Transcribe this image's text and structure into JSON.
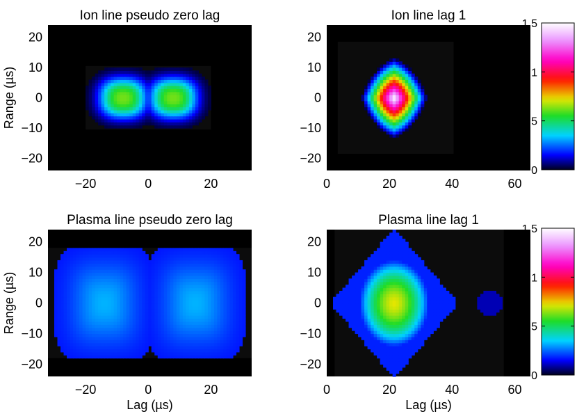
{
  "chart_data": [
    {
      "type": "heatmap",
      "title": "Ion line pseudo zero lag",
      "xlabel": "",
      "ylabel": "Range (µs)",
      "xlim": [
        -32,
        33
      ],
      "ylim": [
        -24,
        24
      ],
      "x_ticks": [
        "−20",
        "0",
        "20"
      ],
      "y_ticks": [
        "20",
        "10",
        "0",
        "−10",
        "−20"
      ],
      "support": {
        "x": [
          -20,
          20
        ],
        "y": [
          -10.5,
          10.5
        ]
      },
      "blobs": [
        {
          "x": -8,
          "y": 0,
          "peak": 0.62
        },
        {
          "x": 8,
          "y": 0,
          "peak": 0.62
        }
      ]
    },
    {
      "type": "heatmap",
      "title": "Ion line lag 1",
      "xlabel": "",
      "ylabel": "",
      "xlim": [
        0,
        65
      ],
      "ylim": [
        -24,
        24
      ],
      "x_ticks": [
        "0",
        "20",
        "40",
        "60"
      ],
      "y_ticks": [
        "20",
        "10",
        "0",
        "−10",
        "−20"
      ],
      "support": {
        "x": [
          3.5,
          40.5
        ],
        "y": [
          -18.5,
          18.5
        ]
      },
      "blobs": [
        {
          "x": 21.5,
          "y": 0,
          "peak": 1.5
        }
      ]
    },
    {
      "type": "heatmap",
      "title": "Plasma line pseudo zero lag",
      "xlabel": "Lag (µs)",
      "ylabel": "Range (µs)",
      "xlim": [
        -32,
        33
      ],
      "ylim": [
        -24,
        24
      ],
      "x_ticks": [
        "−20",
        "0",
        "20"
      ],
      "y_ticks": [
        "20",
        "10",
        "0",
        "−10",
        "−20"
      ],
      "support": {
        "x": [
          -32,
          33
        ],
        "y": [
          -18,
          18
        ]
      },
      "blobs": [
        {
          "x": -14,
          "y": 0,
          "peak": 0.32
        },
        {
          "x": 15,
          "y": 0,
          "peak": 0.32
        }
      ]
    },
    {
      "type": "heatmap",
      "title": "Plasma line lag 1",
      "xlabel": "Lag (µs)",
      "ylabel": "",
      "xlim": [
        0,
        65
      ],
      "ylim": [
        -24,
        24
      ],
      "x_ticks": [
        "0",
        "20",
        "40",
        "60"
      ],
      "y_ticks": [
        "20",
        "10",
        "0",
        "−10",
        "−20"
      ],
      "support": {
        "x": [
          2.5,
          56.5
        ],
        "y": [
          -24,
          24
        ]
      },
      "blobs": [
        {
          "x": 21.5,
          "y": 0,
          "peak": 0.72
        },
        {
          "x": 52,
          "y": 0,
          "peak": 0.1
        }
      ]
    }
  ],
  "colorbars": [
    {
      "ticks": [
        "1.5",
        "1",
        "0.5",
        "0"
      ],
      "range": [
        0,
        1.5
      ],
      "colormap": "jet-like ending in white"
    },
    {
      "ticks": [
        "1.5",
        "1",
        "0.5",
        "0"
      ],
      "range": [
        0,
        1.5
      ],
      "colormap": "jet-like ending in white"
    }
  ]
}
